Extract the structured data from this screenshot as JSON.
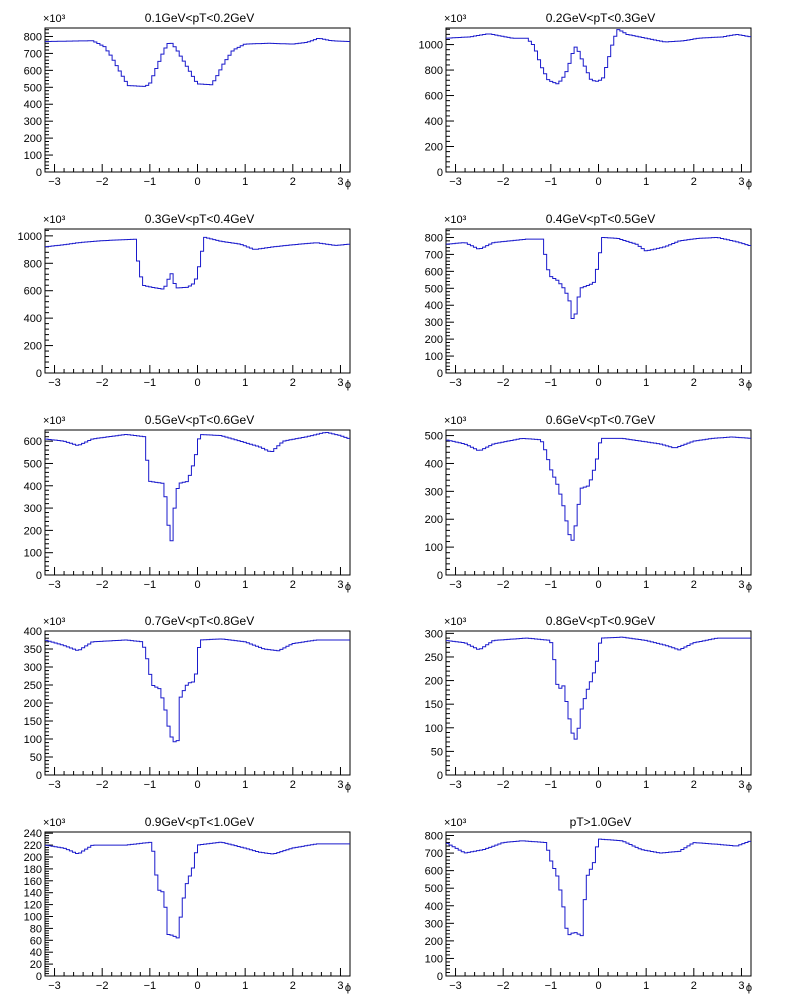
{
  "chart_data": [
    {
      "type": "histogram",
      "title": "0.1GeV<pT<0.2GeV",
      "xlabel": "ϕ",
      "exponent_label": "×10³",
      "xlim": [
        -3.2,
        3.2
      ],
      "ylim": [
        0,
        850
      ],
      "x_ticks": [
        -3,
        -2,
        -1,
        0,
        1,
        2,
        3
      ],
      "y_ticks": [
        0,
        100,
        200,
        300,
        400,
        500,
        600,
        700,
        800
      ],
      "y_tick_labels": [
        "0",
        "100",
        "200",
        "300",
        "400",
        "500",
        "600",
        "700",
        "800"
      ],
      "keypoints": [
        [
          -3.2,
          770
        ],
        [
          -2.2,
          775
        ],
        [
          -1.95,
          740
        ],
        [
          -1.8,
          680
        ],
        [
          -1.6,
          580
        ],
        [
          -1.45,
          510
        ],
        [
          -1.1,
          505
        ],
        [
          -1.0,
          520
        ],
        [
          -0.85,
          620
        ],
        [
          -0.7,
          720
        ],
        [
          -0.58,
          770
        ],
        [
          -0.45,
          730
        ],
        [
          -0.3,
          660
        ],
        [
          -0.15,
          590
        ],
        [
          0.0,
          520
        ],
        [
          0.3,
          515
        ],
        [
          0.4,
          560
        ],
        [
          0.55,
          640
        ],
        [
          0.75,
          720
        ],
        [
          1.0,
          755
        ],
        [
          1.5,
          760
        ],
        [
          2.0,
          755
        ],
        [
          2.3,
          765
        ],
        [
          2.55,
          790
        ],
        [
          2.8,
          775
        ],
        [
          3.2,
          770
        ]
      ]
    },
    {
      "type": "histogram",
      "title": "0.2GeV<pT<0.3GeV",
      "xlabel": "ϕ",
      "exponent_label": "×10³",
      "xlim": [
        -3.2,
        3.2
      ],
      "ylim": [
        0,
        1130
      ],
      "x_ticks": [
        -3,
        -2,
        -1,
        0,
        1,
        2,
        3
      ],
      "y_ticks": [
        0,
        200,
        400,
        600,
        800,
        1000
      ],
      "y_tick_labels": [
        "0",
        "200",
        "400",
        "600",
        "800",
        "1000"
      ],
      "keypoints": [
        [
          -3.2,
          1050
        ],
        [
          -2.7,
          1060
        ],
        [
          -2.3,
          1085
        ],
        [
          -1.8,
          1050
        ],
        [
          -1.5,
          1050
        ],
        [
          -1.35,
          990
        ],
        [
          -1.2,
          830
        ],
        [
          -1.05,
          720
        ],
        [
          -0.85,
          690
        ],
        [
          -0.7,
          760
        ],
        [
          -0.58,
          880
        ],
        [
          -0.5,
          990
        ],
        [
          -0.42,
          950
        ],
        [
          -0.3,
          840
        ],
        [
          -0.15,
          720
        ],
        [
          0.0,
          710
        ],
        [
          0.1,
          740
        ],
        [
          0.22,
          900
        ],
        [
          0.32,
          1040
        ],
        [
          0.42,
          1120
        ],
        [
          0.6,
          1080
        ],
        [
          1.0,
          1050
        ],
        [
          1.4,
          1020
        ],
        [
          1.8,
          1030
        ],
        [
          2.1,
          1050
        ],
        [
          2.6,
          1060
        ],
        [
          2.9,
          1080
        ],
        [
          3.2,
          1060
        ]
      ]
    },
    {
      "type": "histogram",
      "title": "0.3GeV<pT<0.4GeV",
      "xlabel": "ϕ",
      "exponent_label": "×10³",
      "xlim": [
        -3.2,
        3.2
      ],
      "ylim": [
        0,
        1050
      ],
      "x_ticks": [
        -3,
        -2,
        -1,
        0,
        1,
        2,
        3
      ],
      "y_ticks": [
        0,
        200,
        400,
        600,
        800,
        1000
      ],
      "y_tick_labels": [
        "0",
        "200",
        "400",
        "600",
        "800",
        "1000"
      ],
      "keypoints": [
        [
          -3.2,
          920
        ],
        [
          -2.8,
          935
        ],
        [
          -2.5,
          950
        ],
        [
          -2.0,
          965
        ],
        [
          -1.3,
          975
        ],
        [
          -1.25,
          820
        ],
        [
          -1.15,
          640
        ],
        [
          -0.95,
          625
        ],
        [
          -0.7,
          610
        ],
        [
          -0.55,
          730
        ],
        [
          -0.45,
          620
        ],
        [
          -0.2,
          625
        ],
        [
          -0.05,
          660
        ],
        [
          0.05,
          800
        ],
        [
          0.15,
          990
        ],
        [
          0.5,
          960
        ],
        [
          0.9,
          940
        ],
        [
          1.2,
          900
        ],
        [
          1.6,
          920
        ],
        [
          2.0,
          935
        ],
        [
          2.5,
          950
        ],
        [
          2.9,
          930
        ],
        [
          3.2,
          940
        ]
      ]
    },
    {
      "type": "histogram",
      "title": "0.4GeV<pT<0.5GeV",
      "xlabel": "ϕ",
      "exponent_label": "×10³",
      "xlim": [
        -3.2,
        3.2
      ],
      "ylim": [
        0,
        850
      ],
      "x_ticks": [
        -3,
        -2,
        -1,
        0,
        1,
        2,
        3
      ],
      "y_ticks": [
        0,
        100,
        200,
        300,
        400,
        500,
        600,
        700,
        800
      ],
      "y_tick_labels": [
        "0",
        "100",
        "200",
        "300",
        "400",
        "500",
        "600",
        "700",
        "800"
      ],
      "keypoints": [
        [
          -3.2,
          760
        ],
        [
          -2.8,
          770
        ],
        [
          -2.5,
          730
        ],
        [
          -2.2,
          770
        ],
        [
          -1.5,
          790
        ],
        [
          -1.15,
          790
        ],
        [
          -1.1,
          640
        ],
        [
          -1.0,
          570
        ],
        [
          -0.85,
          545
        ],
        [
          -0.7,
          490
        ],
        [
          -0.6,
          420
        ],
        [
          -0.52,
          280
        ],
        [
          -0.45,
          400
        ],
        [
          -0.38,
          500
        ],
        [
          -0.1,
          530
        ],
        [
          0.0,
          650
        ],
        [
          0.08,
          800
        ],
        [
          0.4,
          795
        ],
        [
          0.8,
          760
        ],
        [
          1.0,
          720
        ],
        [
          1.4,
          745
        ],
        [
          1.7,
          780
        ],
        [
          2.1,
          795
        ],
        [
          2.5,
          800
        ],
        [
          2.9,
          775
        ],
        [
          3.2,
          750
        ]
      ]
    },
    {
      "type": "histogram",
      "title": "0.5GeV<pT<0.6GeV",
      "xlabel": "ϕ",
      "exponent_label": "×10³",
      "xlim": [
        -3.2,
        3.2
      ],
      "ylim": [
        0,
        650
      ],
      "x_ticks": [
        -3,
        -2,
        -1,
        0,
        1,
        2,
        3
      ],
      "y_ticks": [
        0,
        100,
        200,
        300,
        400,
        500,
        600
      ],
      "y_tick_labels": [
        "0",
        "100",
        "200",
        "300",
        "400",
        "500",
        "600"
      ],
      "keypoints": [
        [
          -3.2,
          610
        ],
        [
          -2.8,
          600
        ],
        [
          -2.5,
          580
        ],
        [
          -2.2,
          610
        ],
        [
          -1.5,
          630
        ],
        [
          -1.1,
          620
        ],
        [
          -1.05,
          500
        ],
        [
          -1.0,
          420
        ],
        [
          -0.7,
          410
        ],
        [
          -0.62,
          240
        ],
        [
          -0.55,
          140
        ],
        [
          -0.48,
          300
        ],
        [
          -0.4,
          410
        ],
        [
          -0.2,
          420
        ],
        [
          -0.05,
          520
        ],
        [
          0.05,
          630
        ],
        [
          0.5,
          625
        ],
        [
          0.9,
          600
        ],
        [
          1.3,
          575
        ],
        [
          1.55,
          550
        ],
        [
          1.8,
          600
        ],
        [
          2.3,
          620
        ],
        [
          2.7,
          640
        ],
        [
          3.0,
          625
        ],
        [
          3.2,
          610
        ]
      ]
    },
    {
      "type": "histogram",
      "title": "0.6GeV<pT<0.7GeV",
      "xlabel": "ϕ",
      "exponent_label": "×10³",
      "xlim": [
        -3.2,
        3.2
      ],
      "ylim": [
        0,
        520
      ],
      "x_ticks": [
        -3,
        -2,
        -1,
        0,
        1,
        2,
        3
      ],
      "y_ticks": [
        0,
        100,
        200,
        300,
        400,
        500
      ],
      "y_tick_labels": [
        "0",
        "100",
        "200",
        "300",
        "400",
        "500"
      ],
      "keypoints": [
        [
          -3.2,
          485
        ],
        [
          -2.8,
          470
        ],
        [
          -2.5,
          445
        ],
        [
          -2.2,
          470
        ],
        [
          -1.6,
          490
        ],
        [
          -1.2,
          485
        ],
        [
          -1.1,
          440
        ],
        [
          -1.0,
          380
        ],
        [
          -0.85,
          320
        ],
        [
          -0.75,
          260
        ],
        [
          -0.62,
          150
        ],
        [
          -0.55,
          120
        ],
        [
          -0.45,
          200
        ],
        [
          -0.38,
          310
        ],
        [
          -0.2,
          320
        ],
        [
          -0.05,
          400
        ],
        [
          0.05,
          490
        ],
        [
          0.5,
          490
        ],
        [
          0.9,
          480
        ],
        [
          1.3,
          470
        ],
        [
          1.6,
          455
        ],
        [
          2.0,
          480
        ],
        [
          2.4,
          490
        ],
        [
          2.8,
          495
        ],
        [
          3.2,
          490
        ]
      ]
    },
    {
      "type": "histogram",
      "title": "0.7GeV<pT<0.8GeV",
      "xlabel": "ϕ",
      "exponent_label": "×10³",
      "xlim": [
        -3.2,
        3.2
      ],
      "ylim": [
        0,
        400
      ],
      "x_ticks": [
        -3,
        -2,
        -1,
        0,
        1,
        2,
        3
      ],
      "y_ticks": [
        0,
        50,
        100,
        150,
        200,
        250,
        300,
        350,
        400
      ],
      "y_tick_labels": [
        "0",
        "50",
        "100",
        "150",
        "200",
        "250",
        "300",
        "350",
        "400"
      ],
      "keypoints": [
        [
          -3.2,
          375
        ],
        [
          -2.8,
          360
        ],
        [
          -2.5,
          345
        ],
        [
          -2.2,
          370
        ],
        [
          -1.5,
          375
        ],
        [
          -1.15,
          370
        ],
        [
          -1.05,
          320
        ],
        [
          -0.95,
          250
        ],
        [
          -0.8,
          240
        ],
        [
          -0.7,
          200
        ],
        [
          -0.6,
          130
        ],
        [
          -0.52,
          95
        ],
        [
          -0.42,
          88
        ],
        [
          -0.35,
          220
        ],
        [
          -0.2,
          255
        ],
        [
          -0.05,
          260
        ],
        [
          0.05,
          375
        ],
        [
          0.5,
          378
        ],
        [
          1.0,
          370
        ],
        [
          1.4,
          350
        ],
        [
          1.7,
          345
        ],
        [
          2.0,
          365
        ],
        [
          2.5,
          375
        ],
        [
          3.2,
          375
        ]
      ]
    },
    {
      "type": "histogram",
      "title": "0.8GeV<pT<0.9GeV",
      "xlabel": "ϕ",
      "exponent_label": "×10³",
      "xlim": [
        -3.2,
        3.2
      ],
      "ylim": [
        0,
        305
      ],
      "x_ticks": [
        -3,
        -2,
        -1,
        0,
        1,
        2,
        3
      ],
      "y_ticks": [
        0,
        50,
        100,
        150,
        200,
        250,
        300
      ],
      "y_tick_labels": [
        "0",
        "50",
        "100",
        "150",
        "200",
        "250",
        "300"
      ],
      "keypoints": [
        [
          -3.2,
          285
        ],
        [
          -2.8,
          280
        ],
        [
          -2.5,
          265
        ],
        [
          -2.2,
          285
        ],
        [
          -1.5,
          290
        ],
        [
          -1.0,
          285
        ],
        [
          -0.92,
          240
        ],
        [
          -0.85,
          180
        ],
        [
          -0.72,
          190
        ],
        [
          -0.65,
          140
        ],
        [
          -0.55,
          90
        ],
        [
          -0.45,
          70
        ],
        [
          -0.38,
          130
        ],
        [
          -0.25,
          175
        ],
        [
          -0.15,
          200
        ],
        [
          -0.05,
          230
        ],
        [
          0.05,
          290
        ],
        [
          0.5,
          292
        ],
        [
          1.0,
          285
        ],
        [
          1.4,
          275
        ],
        [
          1.7,
          265
        ],
        [
          2.0,
          280
        ],
        [
          2.5,
          290
        ],
        [
          3.2,
          290
        ]
      ]
    },
    {
      "type": "histogram",
      "title": "0.9GeV<pT<1.0GeV",
      "xlabel": "ϕ",
      "exponent_label": "×10³",
      "xlim": [
        -3.2,
        3.2
      ],
      "ylim": [
        0,
        242
      ],
      "x_ticks": [
        -3,
        -2,
        -1,
        0,
        1,
        2,
        3
      ],
      "y_ticks": [
        0,
        20,
        40,
        60,
        80,
        100,
        120,
        140,
        160,
        180,
        200,
        220,
        240
      ],
      "y_tick_labels": [
        "0",
        "20",
        "40",
        "60",
        "80",
        "100",
        "120",
        "140",
        "160",
        "180",
        "200",
        "220",
        "240"
      ],
      "keypoints": [
        [
          -3.2,
          220
        ],
        [
          -2.8,
          215
        ],
        [
          -2.5,
          205
        ],
        [
          -2.2,
          220
        ],
        [
          -1.5,
          220
        ],
        [
          -0.95,
          225
        ],
        [
          -0.9,
          190
        ],
        [
          -0.82,
          145
        ],
        [
          -0.7,
          140
        ],
        [
          -0.62,
          70
        ],
        [
          -0.5,
          68
        ],
        [
          -0.42,
          62
        ],
        [
          -0.35,
          100
        ],
        [
          -0.25,
          150
        ],
        [
          -0.1,
          180
        ],
        [
          0.0,
          220
        ],
        [
          0.5,
          225
        ],
        [
          1.0,
          215
        ],
        [
          1.3,
          208
        ],
        [
          1.6,
          205
        ],
        [
          2.0,
          215
        ],
        [
          2.5,
          222
        ],
        [
          3.2,
          222
        ]
      ]
    },
    {
      "type": "histogram",
      "title": "pT>1.0GeV",
      "xlabel": "ϕ",
      "exponent_label": "×10³",
      "xlim": [
        -3.2,
        3.2
      ],
      "ylim": [
        0,
        820
      ],
      "x_ticks": [
        -3,
        -2,
        -1,
        0,
        1,
        2,
        3
      ],
      "y_ticks": [
        0,
        100,
        200,
        300,
        400,
        500,
        600,
        700,
        800
      ],
      "y_tick_labels": [
        "0",
        "100",
        "200",
        "300",
        "400",
        "500",
        "600",
        "700",
        "800"
      ],
      "keypoints": [
        [
          -3.2,
          760
        ],
        [
          -2.8,
          700
        ],
        [
          -2.4,
          720
        ],
        [
          -2.0,
          760
        ],
        [
          -1.6,
          770
        ],
        [
          -1.1,
          760
        ],
        [
          -1.0,
          660
        ],
        [
          -0.85,
          560
        ],
        [
          -0.75,
          420
        ],
        [
          -0.65,
          230
        ],
        [
          -0.5,
          250
        ],
        [
          -0.35,
          230
        ],
        [
          -0.25,
          560
        ],
        [
          -0.1,
          640
        ],
        [
          0.0,
          780
        ],
        [
          0.5,
          770
        ],
        [
          0.9,
          720
        ],
        [
          1.3,
          700
        ],
        [
          1.7,
          710
        ],
        [
          2.0,
          760
        ],
        [
          2.5,
          750
        ],
        [
          2.9,
          740
        ],
        [
          3.2,
          770
        ]
      ]
    }
  ]
}
